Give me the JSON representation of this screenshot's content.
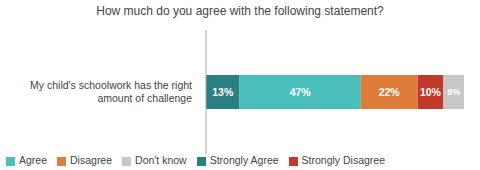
{
  "chart_data": {
    "type": "bar",
    "title": "How much do you agree with the following statement?",
    "orientation": "horizontal",
    "stacked": true,
    "categories": [
      "My child's schoolwork has the right\namount of challenge"
    ],
    "series": [
      {
        "name": "Strongly Agree",
        "color": "#2a7f82",
        "values": [
          13
        ],
        "value_labels": [
          "13%"
        ]
      },
      {
        "name": "Agree",
        "color": "#4bbfbc",
        "values": [
          47
        ],
        "value_labels": [
          "47%"
        ]
      },
      {
        "name": "Disagree",
        "color": "#e07c3a",
        "values": [
          22
        ],
        "value_labels": [
          "22%"
        ]
      },
      {
        "name": "Strongly Disagree",
        "color": "#c0392b",
        "values": [
          10
        ],
        "value_labels": [
          "10%"
        ]
      },
      {
        "name": "Don't know",
        "color": "#c8c8c8",
        "values": [
          8
        ],
        "value_labels": [
          "8%"
        ]
      }
    ],
    "xlim": [
      0,
      100
    ],
    "data_labels": true,
    "tick_labels": "y",
    "grid": false,
    "legend": "lower left"
  }
}
